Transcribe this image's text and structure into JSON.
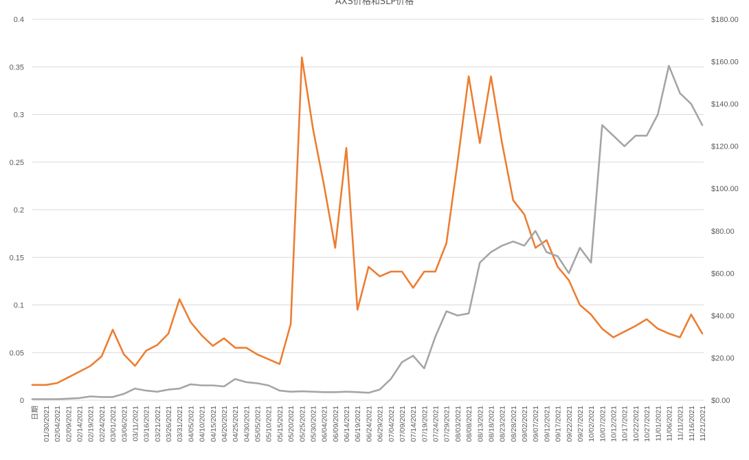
{
  "chart_data": {
    "type": "line",
    "title": "AXS价格和SLP价格",
    "x_first_label": "日期",
    "x": [
      "01/30/2021",
      "02/04/2021",
      "02/09/2021",
      "02/14/2021",
      "02/19/2021",
      "02/24/2021",
      "03/01/2021",
      "03/06/2021",
      "03/11/2021",
      "03/16/2021",
      "03/21/2021",
      "03/26/2021",
      "03/31/2021",
      "04/05/2021",
      "04/10/2021",
      "04/15/2021",
      "04/20/2021",
      "04/25/2021",
      "04/30/2021",
      "05/05/2021",
      "05/10/2021",
      "05/15/2021",
      "05/20/2021",
      "05/25/2021",
      "05/30/2021",
      "06/04/2021",
      "06/09/2021",
      "06/14/2021",
      "06/19/2021",
      "06/24/2021",
      "06/29/2021",
      "07/04/2021",
      "07/09/2021",
      "07/14/2021",
      "07/19/2021",
      "07/24/2021",
      "07/29/2021",
      "08/03/2021",
      "08/08/2021",
      "08/13/2021",
      "08/18/2021",
      "08/23/2021",
      "08/28/2021",
      "09/02/2021",
      "09/07/2021",
      "09/12/2021",
      "09/17/2021",
      "09/22/2021",
      "09/27/2021",
      "10/02/2021",
      "10/07/2021",
      "10/12/2021",
      "10/17/2021",
      "10/22/2021",
      "10/27/2021",
      "11/01/2021",
      "11/06/2021",
      "11/11/2021",
      "11/16/2021",
      "11/21/2021"
    ],
    "left_axis": {
      "ylim": [
        0,
        0.4
      ],
      "ticks": [
        "0",
        "0.05",
        "0.1",
        "0.15",
        "0.2",
        "0.25",
        "0.3",
        "0.35",
        "0.4"
      ]
    },
    "right_axis": {
      "ylim": [
        0,
        180
      ],
      "ticks": [
        "$0.00",
        "$20.00",
        "$40.00",
        "$60.00",
        "$80.00",
        "$100.00",
        "$120.00",
        "$140.00",
        "$160.00",
        "$180.00"
      ]
    },
    "series": [
      {
        "axis": "left",
        "color": "#ed7d31",
        "values": [
          0.016,
          0.018,
          0.024,
          0.03,
          0.036,
          0.046,
          0.074,
          0.048,
          0.036,
          0.052,
          0.058,
          0.07,
          0.106,
          0.082,
          0.068,
          0.057,
          0.065,
          0.055,
          0.055,
          0.048,
          0.043,
          0.038,
          0.08,
          0.36,
          0.285,
          0.225,
          0.16,
          0.265,
          0.095,
          0.14,
          0.13,
          0.135,
          0.135,
          0.118,
          0.135,
          0.135,
          0.165,
          0.25,
          0.34,
          0.27,
          0.34,
          0.27,
          0.21,
          0.195,
          0.16,
          0.168,
          0.14,
          0.126,
          0.1,
          0.09,
          0.075,
          0.066,
          0.072,
          0.078,
          0.085,
          0.075,
          0.07,
          0.066,
          0.09,
          0.07
        ]
      },
      {
        "axis": "right",
        "color": "#a5a5a5",
        "values": [
          0.5,
          0.5,
          0.7,
          1.0,
          1.8,
          1.5,
          1.5,
          3.0,
          5.5,
          4.5,
          4.0,
          5.0,
          5.5,
          7.5,
          7.0,
          7.0,
          6.5,
          10.0,
          8.5,
          8.0,
          7.0,
          4.5,
          4.0,
          4.2,
          4.0,
          3.8,
          3.8,
          4.0,
          3.8,
          3.5,
          5.0,
          10.0,
          18.0,
          21.0,
          15.0,
          30.0,
          42.0,
          40.0,
          41.0,
          65.0,
          70.0,
          73.0,
          75.0,
          73.0,
          80.0,
          70.0,
          68.0,
          60.0,
          72.0,
          65.0,
          130.0,
          125.0,
          120.0,
          125.0,
          125.0,
          135.0,
          158.0,
          145.0,
          140.0,
          130.0
        ]
      }
    ]
  }
}
